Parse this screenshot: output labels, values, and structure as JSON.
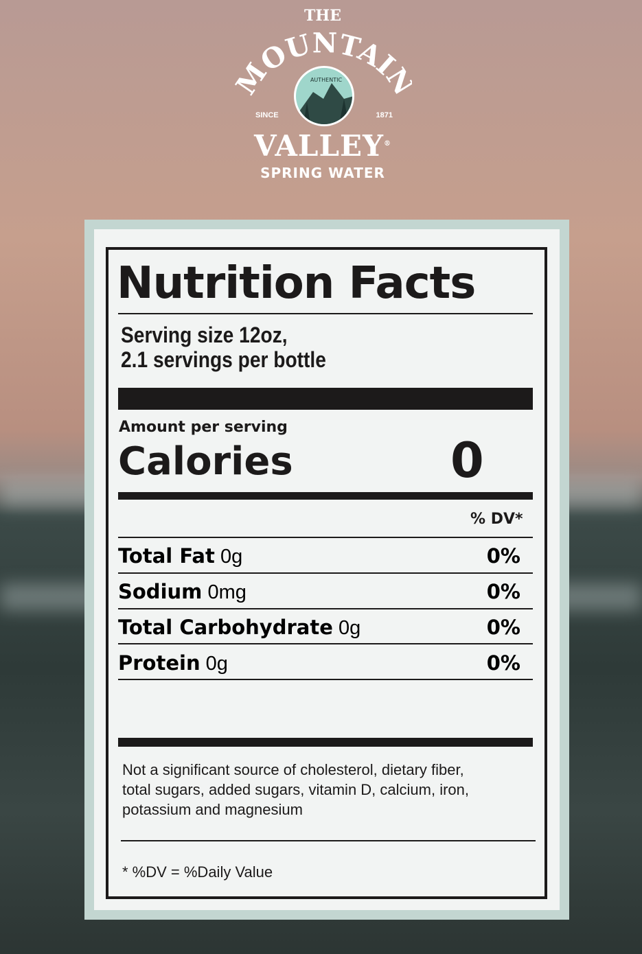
{
  "logo": {
    "line1": "THE",
    "line2": "MOUNTAIN",
    "badge": "AUTHENTIC",
    "since": "SINCE",
    "year": "1871",
    "line3": "VALLEY",
    "reg": "®",
    "line4": "SPRING WATER"
  },
  "label": {
    "title": "Nutrition Facts",
    "serving_size": "Serving size 12oz,",
    "servings_per": "2.1 servings per bottle",
    "amount_per": "Amount per serving",
    "calories_label": "Calories",
    "calories_value": "0",
    "dv_header": "% DV*",
    "nutrients": [
      {
        "name": "Total Fat",
        "amount": "0g",
        "dv": "0%"
      },
      {
        "name": "Sodium",
        "amount": "0mg",
        "dv": "0%"
      },
      {
        "name": "Total Carbohydrate",
        "amount": "0g",
        "dv": "0%"
      },
      {
        "name": "Protein",
        "amount": "0g",
        "dv": "0%"
      }
    ],
    "footnote_lines": [
      "Not a significant source of cholesterol, dietary fiber,",
      "total sugars, added sugars, vitamin D, calcium, iron,",
      "potassium and magnesium"
    ],
    "dv_note": "* %DV = %Daily Value"
  },
  "colors": {
    "frame": "#c3d6d1",
    "paper": "#f2f4f3",
    "ink": "#1c1a1a"
  }
}
